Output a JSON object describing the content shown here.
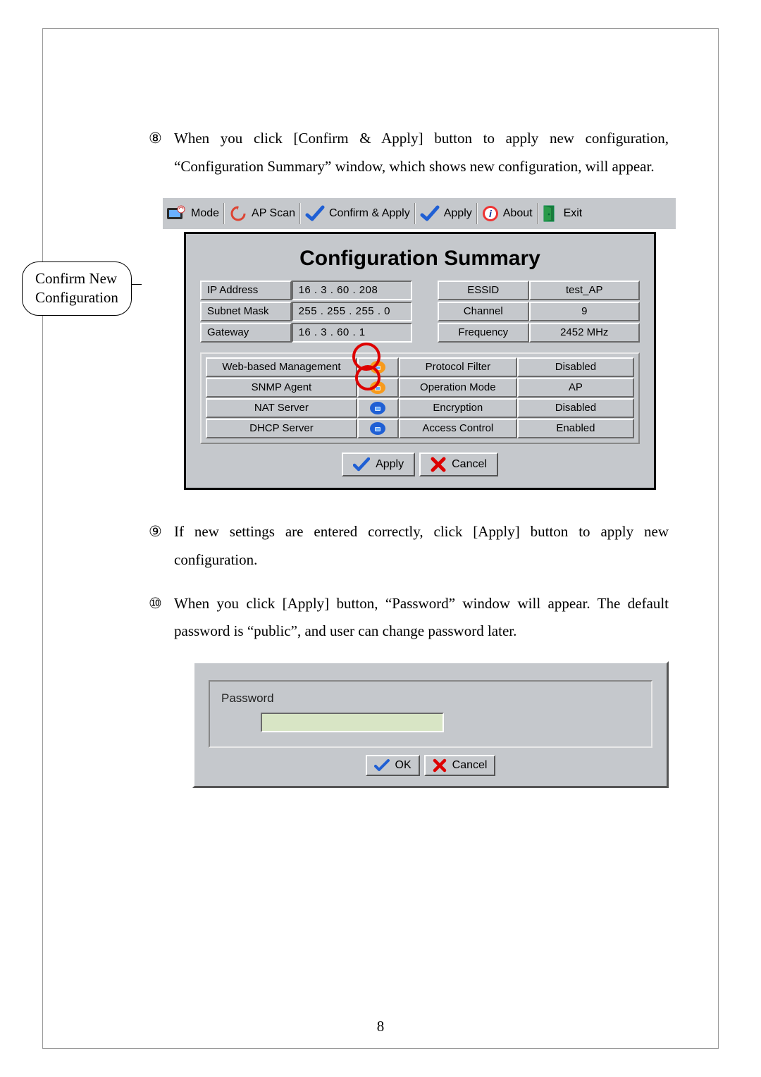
{
  "step8": {
    "marker": "⑧",
    "text": "When you click [Confirm & Apply] button to apply new configuration, “Configuration Summary” window, which shows new configuration, will appear."
  },
  "callout": {
    "line1": "Confirm  New",
    "line2": "Configuration"
  },
  "toolbar": {
    "mode": "Mode",
    "apscan": "AP Scan",
    "confirm": "Confirm & Apply",
    "apply": "Apply",
    "about": "About",
    "exit": "Exit"
  },
  "summary": {
    "title": "Configuration Summary",
    "rowsA": [
      {
        "l": "IP Address",
        "ip": "16  .  3  . 60  . 208",
        "m": "ESSID",
        "r": "test_AP"
      },
      {
        "l": "Subnet Mask",
        "ip": "255 . 255 . 255 .  0",
        "m": "Channel",
        "r": "9"
      },
      {
        "l": "Gateway",
        "ip": "16  .  3  . 60  .  1",
        "m": "Frequency",
        "r": "2452 MHz"
      }
    ],
    "rowsB": [
      {
        "a": "Web-based Management",
        "icon": "orange",
        "c": "Protocol Filter",
        "d": "Disabled"
      },
      {
        "a": "SNMP Agent",
        "icon": "orange",
        "c": "Operation Mode",
        "d": "AP"
      },
      {
        "a": "NAT Server",
        "icon": "blue",
        "c": "Encryption",
        "d": "Disabled"
      },
      {
        "a": "DHCP Server",
        "icon": "blue",
        "c": "Access Control",
        "d": "Enabled"
      }
    ],
    "apply": "Apply",
    "cancel": "Cancel"
  },
  "step9": {
    "marker": "⑨",
    "text": "If new settings are entered correctly, click [Apply] button to apply new configuration."
  },
  "step10": {
    "marker": "⑩",
    "text": "When you click [Apply] button, “Password” window will appear. The default password is “public”, and user can change password later."
  },
  "pw": {
    "label": "Password",
    "ok": "OK",
    "cancel": "Cancel"
  },
  "pageNumber": "8",
  "colors": {
    "panel_bg": "#c5c8cc",
    "red": "#d00000",
    "orange": "#f79a1c",
    "blue": "#1f5fd4",
    "green_input": "#d8e5c5"
  }
}
